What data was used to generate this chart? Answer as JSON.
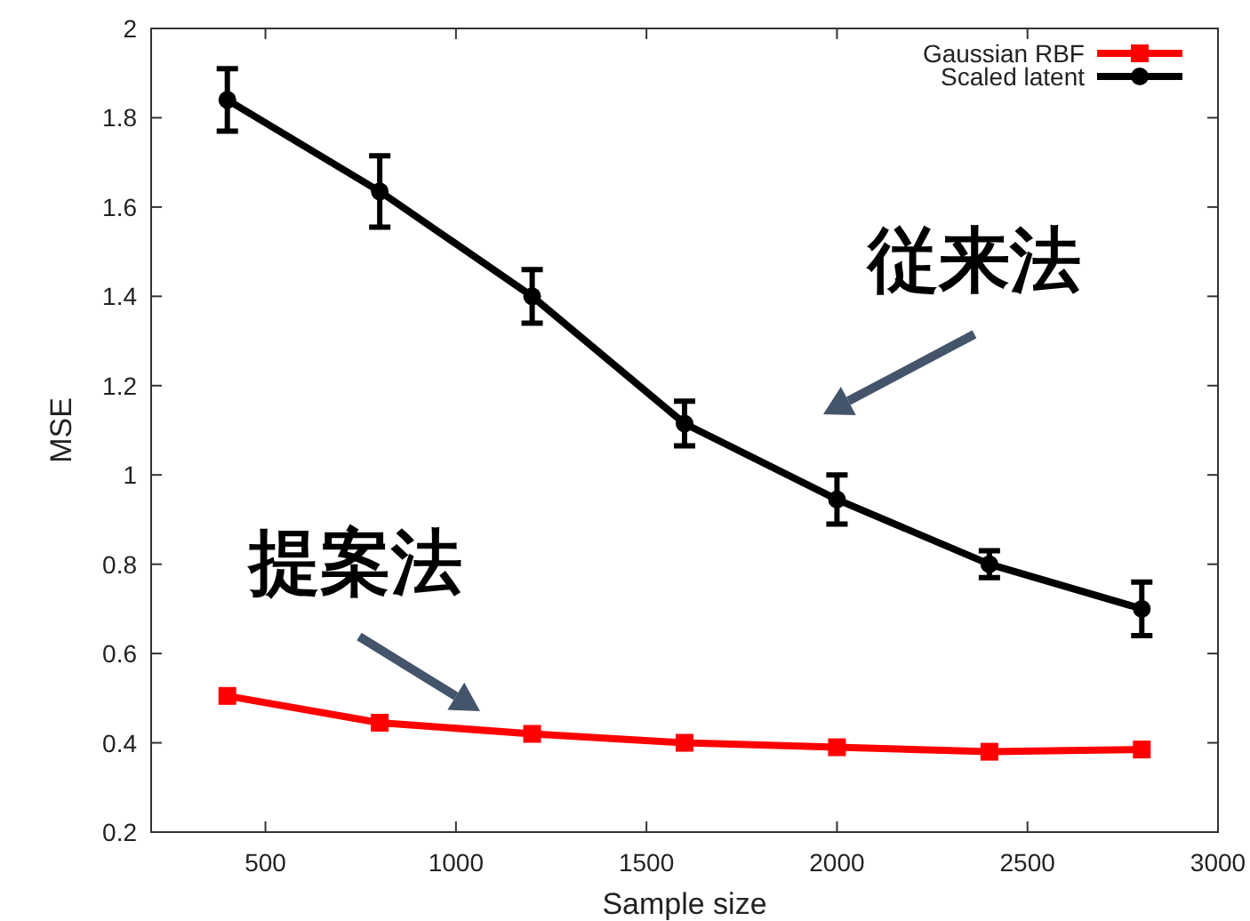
{
  "chart_data": {
    "type": "line",
    "xlabel": "Sample size",
    "ylabel": "MSE",
    "x": [
      400,
      800,
      1200,
      1600,
      2000,
      2400,
      2800
    ],
    "series": [
      {
        "name": "Gaussian RBF",
        "color": "#ff0000",
        "marker": "square",
        "values": [
          0.505,
          0.445,
          0.42,
          0.4,
          0.39,
          0.38,
          0.385
        ]
      },
      {
        "name": "Scaled latent",
        "color": "#000000",
        "marker": "circle",
        "values": [
          1.84,
          1.635,
          1.4,
          1.115,
          0.945,
          0.8,
          0.7
        ],
        "errors": [
          0.07,
          0.08,
          0.06,
          0.05,
          0.055,
          0.03,
          0.06
        ]
      }
    ],
    "xlim": [
      200,
      3000
    ],
    "xticks": [
      500,
      1000,
      1500,
      2000,
      2500,
      3000
    ],
    "ylim": [
      0.2,
      2
    ],
    "yticks": [
      0.2,
      0.4,
      0.6,
      0.8,
      1,
      1.2,
      1.4,
      1.6,
      1.8,
      2
    ],
    "legend": "top right",
    "grid": false,
    "line_style": "solid",
    "annotations": [
      "従来法",
      "提案法"
    ]
  }
}
